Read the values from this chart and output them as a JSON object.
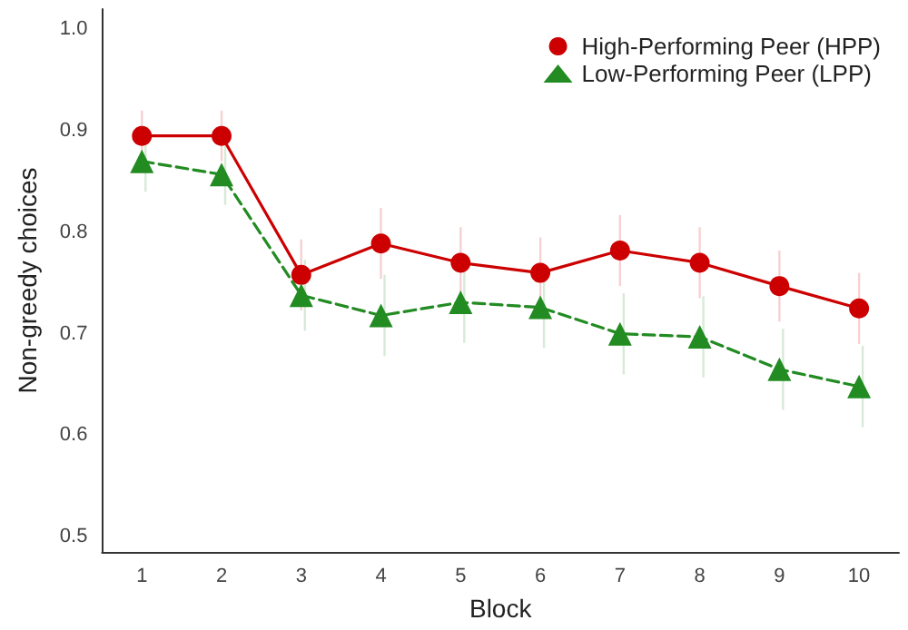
{
  "chart_data": {
    "type": "line",
    "xlabel": "Block",
    "ylabel": "Non-greedy choices",
    "categories": [
      "1",
      "2",
      "3",
      "4",
      "5",
      "6",
      "7",
      "8",
      "9",
      "10"
    ],
    "series": [
      {
        "name": "High-Performing Peer (HPP)",
        "color": "#cc0000",
        "marker": "circle",
        "line_style": "solid",
        "values": [
          0.895,
          0.895,
          0.758,
          0.789,
          0.77,
          0.76,
          0.782,
          0.77,
          0.747,
          0.725
        ],
        "errors": [
          0.025,
          0.025,
          0.035,
          0.035,
          0.035,
          0.035,
          0.035,
          0.035,
          0.035,
          0.035
        ]
      },
      {
        "name": "Low-Performing Peer (LPP)",
        "color": "#228b22",
        "marker": "triangle",
        "line_style": "dashed",
        "values": [
          0.87,
          0.857,
          0.738,
          0.718,
          0.731,
          0.726,
          0.7,
          0.697,
          0.665,
          0.648
        ],
        "errors": [
          0.03,
          0.03,
          0.035,
          0.04,
          0.04,
          0.04,
          0.04,
          0.04,
          0.04,
          0.04
        ]
      }
    ],
    "ylim": [
      0.485,
      1.02
    ],
    "yticks": [
      0.5,
      0.6,
      0.7,
      0.8,
      0.9,
      {
        "value": 1,
        "label": "1.0"
      }
    ],
    "grid": false,
    "legend": "top right"
  }
}
